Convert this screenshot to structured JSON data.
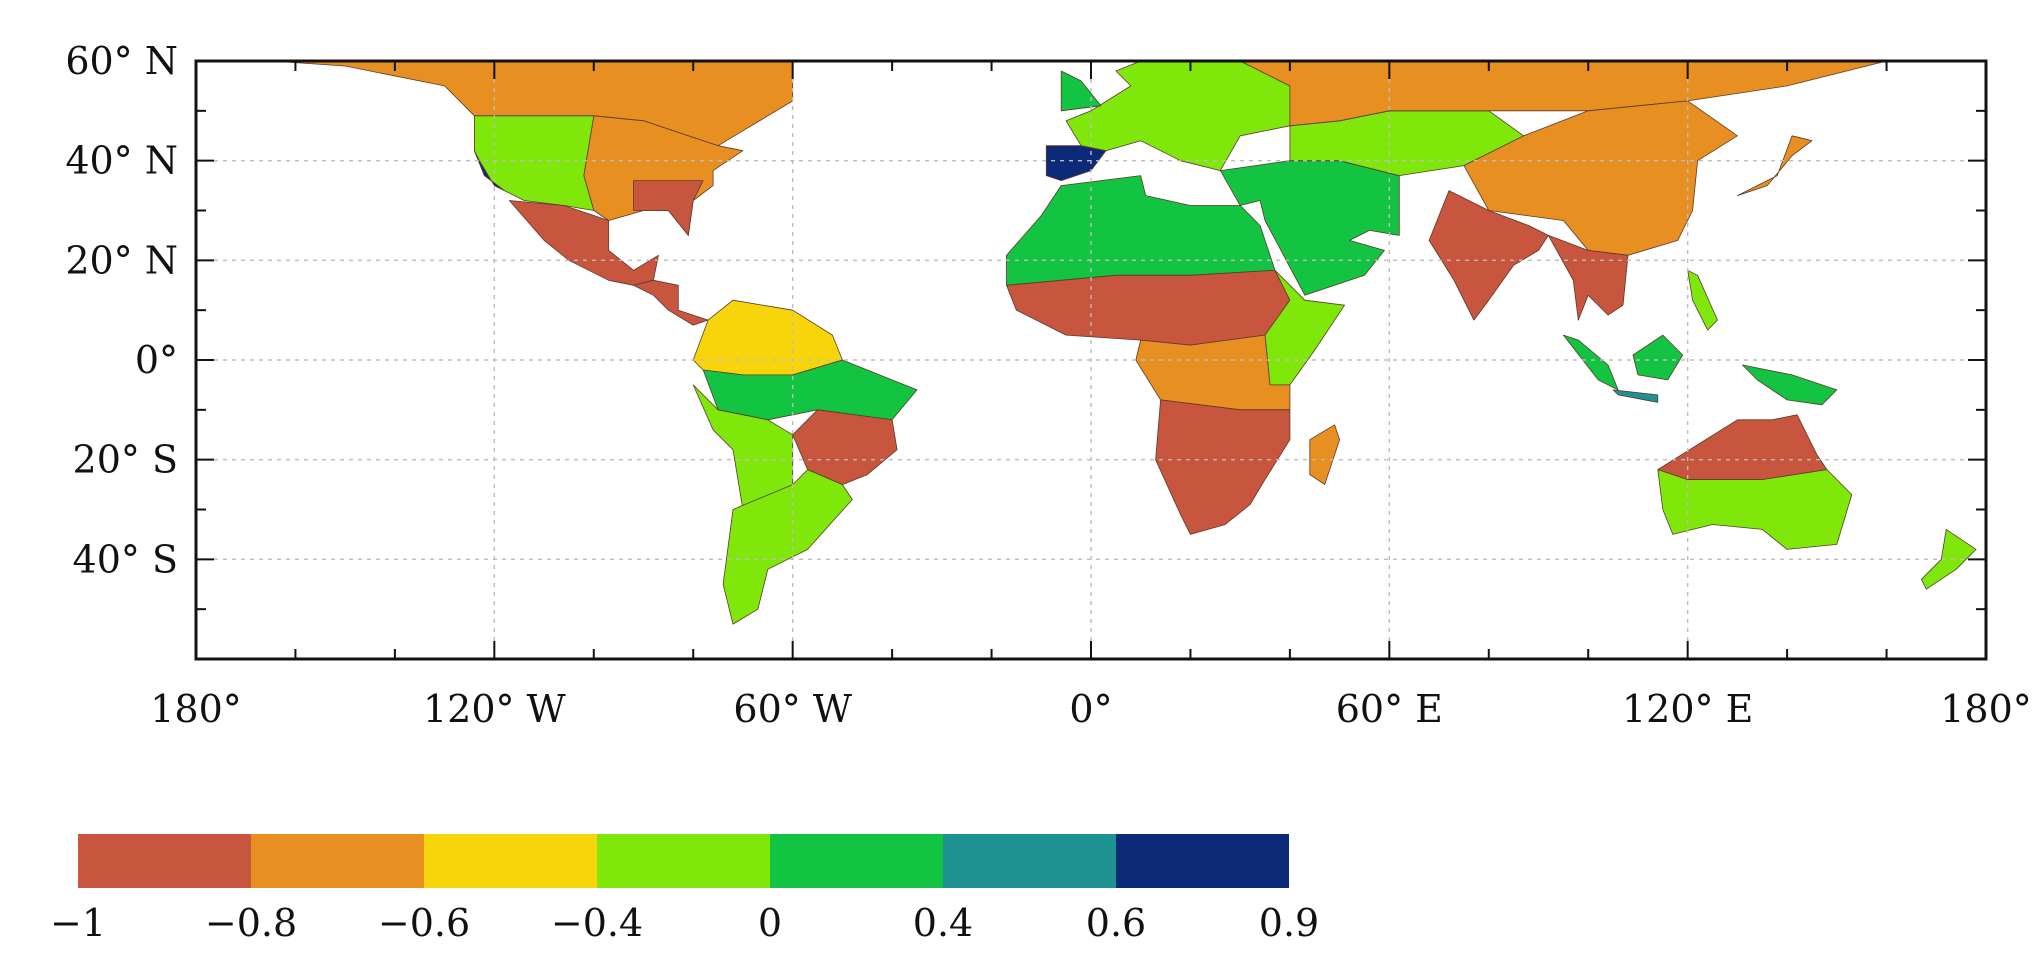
{
  "map": {
    "projection": "equirectangular",
    "lon_range": [
      -180,
      180
    ],
    "lat_range": [
      -60,
      60
    ],
    "grid": true,
    "x_ticks": [
      {
        "lon": -180,
        "label": "180°"
      },
      {
        "lon": -120,
        "label": "120° W"
      },
      {
        "lon": -60,
        "label": "60° W"
      },
      {
        "lon": 0,
        "label": "0°"
      },
      {
        "lon": 60,
        "label": "60° E"
      },
      {
        "lon": 120,
        "label": "120° E"
      },
      {
        "lon": 180,
        "label": "180°"
      }
    ],
    "y_ticks": [
      {
        "lat": 60,
        "label": "60° N"
      },
      {
        "lat": 40,
        "label": "40° N"
      },
      {
        "lat": 20,
        "label": "20° N"
      },
      {
        "lat": 0,
        "label": "0°"
      },
      {
        "lat": -20,
        "label": "20° S"
      },
      {
        "lat": -40,
        "label": "40° S"
      }
    ],
    "minor_x_step": 20,
    "minor_y_step": 10
  },
  "colorbar": {
    "placement": "bottom-left",
    "bins": [
      {
        "from": -1,
        "to": -0.8,
        "color": "#c8553d"
      },
      {
        "from": -0.8,
        "to": -0.6,
        "color": "#e88f22"
      },
      {
        "from": -0.6,
        "to": -0.4,
        "color": "#f7d50a"
      },
      {
        "from": -0.4,
        "to": 0,
        "color": "#7fe80a"
      },
      {
        "from": 0,
        "to": 0.4,
        "color": "#12c441"
      },
      {
        "from": 0.4,
        "to": 0.6,
        "color": "#1e9191"
      },
      {
        "from": 0.6,
        "to": 0.9,
        "color": "#0c2a78"
      }
    ],
    "labels": [
      "−1",
      "−0.8",
      "−0.6",
      "−0.4",
      "0",
      "0.4",
      "0.6",
      "0.9"
    ]
  },
  "regions": [
    {
      "name": "north-america-north",
      "value": -0.7,
      "poly": [
        [
          -165,
          60
        ],
        [
          -60,
          60
        ],
        [
          -60,
          52
        ],
        [
          -70,
          46
        ],
        [
          -75,
          43
        ],
        [
          -90,
          48
        ],
        [
          -100,
          49
        ],
        [
          -124,
          49
        ],
        [
          -130,
          55
        ],
        [
          -150,
          59
        ]
      ]
    },
    {
      "name": "usa-east",
      "value": -0.7,
      "poly": [
        [
          -100,
          49
        ],
        [
          -90,
          48
        ],
        [
          -75,
          43
        ],
        [
          -70,
          42
        ],
        [
          -76,
          38
        ],
        [
          -76,
          35
        ],
        [
          -80,
          32
        ],
        [
          -81,
          25
        ],
        [
          -85,
          30
        ],
        [
          -90,
          30
        ],
        [
          -97,
          28
        ],
        [
          -100,
          30
        ],
        [
          -102,
          37
        ]
      ]
    },
    {
      "name": "usa-west",
      "value": -0.2,
      "poly": [
        [
          -124,
          49
        ],
        [
          -100,
          49
        ],
        [
          -102,
          37
        ],
        [
          -100,
          30
        ],
        [
          -106,
          31
        ],
        [
          -114,
          32
        ],
        [
          -118,
          34
        ],
        [
          -122,
          37
        ],
        [
          -124,
          42
        ]
      ]
    },
    {
      "name": "usa-southeast",
      "value": -0.9,
      "poly": [
        [
          -92,
          36
        ],
        [
          -78,
          36
        ],
        [
          -80,
          32
        ],
        [
          -81,
          25
        ],
        [
          -85,
          30
        ],
        [
          -92,
          30
        ]
      ]
    },
    {
      "name": "california-coast",
      "value": 0.7,
      "poly": [
        [
          -124,
          42
        ],
        [
          -122,
          37
        ],
        [
          -118,
          34
        ],
        [
          -120,
          35
        ],
        [
          -123,
          40
        ]
      ]
    },
    {
      "name": "mexico",
      "value": -0.9,
      "poly": [
        [
          -117,
          32
        ],
        [
          -106,
          31
        ],
        [
          -97,
          28
        ],
        [
          -97,
          22
        ],
        [
          -92,
          18
        ],
        [
          -87,
          21
        ],
        [
          -88,
          16
        ],
        [
          -92,
          15
        ],
        [
          -97,
          16
        ],
        [
          -105,
          20
        ],
        [
          -110,
          24
        ]
      ]
    },
    {
      "name": "central-america",
      "value": -0.9,
      "poly": [
        [
          -92,
          15
        ],
        [
          -88,
          16
        ],
        [
          -83,
          15
        ],
        [
          -83,
          10
        ],
        [
          -77,
          8
        ],
        [
          -80,
          7
        ],
        [
          -85,
          10
        ],
        [
          -88,
          13
        ]
      ]
    },
    {
      "name": "south-america-north",
      "value": -0.5,
      "poly": [
        [
          -77,
          8
        ],
        [
          -72,
          12
        ],
        [
          -60,
          10
        ],
        [
          -52,
          5
        ],
        [
          -50,
          0
        ],
        [
          -60,
          -3
        ],
        [
          -70,
          -3
        ],
        [
          -78,
          -2
        ],
        [
          -80,
          0
        ]
      ]
    },
    {
      "name": "amazon",
      "value": 0.2,
      "poly": [
        [
          -78,
          -2
        ],
        [
          -70,
          -3
        ],
        [
          -60,
          -3
        ],
        [
          -50,
          0
        ],
        [
          -45,
          -2
        ],
        [
          -35,
          -6
        ],
        [
          -40,
          -12
        ],
        [
          -55,
          -10
        ],
        [
          -65,
          -12
        ],
        [
          -75,
          -10
        ]
      ]
    },
    {
      "name": "brazil-central",
      "value": -0.9,
      "poly": [
        [
          -55,
          -10
        ],
        [
          -40,
          -12
        ],
        [
          -39,
          -18
        ],
        [
          -45,
          -23
        ],
        [
          -50,
          -25
        ],
        [
          -57,
          -22
        ],
        [
          -60,
          -15
        ]
      ]
    },
    {
      "name": "andes-west",
      "value": -0.3,
      "poly": [
        [
          -80,
          -5
        ],
        [
          -75,
          -10
        ],
        [
          -65,
          -12
        ],
        [
          -60,
          -15
        ],
        [
          -60,
          -25
        ],
        [
          -70,
          -30
        ],
        [
          -72,
          -18
        ],
        [
          -76,
          -14
        ]
      ]
    },
    {
      "name": "south-america-south",
      "value": -0.3,
      "poly": [
        [
          -60,
          -25
        ],
        [
          -57,
          -22
        ],
        [
          -50,
          -25
        ],
        [
          -48,
          -28
        ],
        [
          -57,
          -38
        ],
        [
          -65,
          -42
        ],
        [
          -67,
          -50
        ],
        [
          -72,
          -53
        ],
        [
          -74,
          -45
        ],
        [
          -72,
          -30
        ]
      ]
    },
    {
      "name": "north-africa",
      "value": 0.1,
      "poly": [
        [
          -17,
          21
        ],
        [
          -10,
          29
        ],
        [
          -6,
          35
        ],
        [
          10,
          37
        ],
        [
          11,
          33
        ],
        [
          20,
          31
        ],
        [
          30,
          31
        ],
        [
          34,
          27
        ],
        [
          37,
          18
        ],
        [
          20,
          17
        ],
        [
          5,
          17
        ],
        [
          -17,
          15
        ]
      ]
    },
    {
      "name": "sahel",
      "value": -0.9,
      "poly": [
        [
          -17,
          15
        ],
        [
          5,
          17
        ],
        [
          20,
          17
        ],
        [
          37,
          18
        ],
        [
          40,
          12
        ],
        [
          35,
          5
        ],
        [
          20,
          3
        ],
        [
          10,
          4
        ],
        [
          -5,
          5
        ],
        [
          -15,
          10
        ]
      ]
    },
    {
      "name": "east-africa",
      "value": -0.3,
      "poly": [
        [
          37,
          18
        ],
        [
          43,
          12
        ],
        [
          51,
          11
        ],
        [
          45,
          2
        ],
        [
          40,
          -5
        ],
        [
          36,
          -5
        ],
        [
          35,
          5
        ],
        [
          40,
          12
        ]
      ]
    },
    {
      "name": "central-africa",
      "value": -0.7,
      "poly": [
        [
          10,
          4
        ],
        [
          20,
          3
        ],
        [
          35,
          5
        ],
        [
          36,
          -5
        ],
        [
          40,
          -5
        ],
        [
          40,
          -10
        ],
        [
          30,
          -10
        ],
        [
          14,
          -8
        ],
        [
          9,
          0
        ]
      ]
    },
    {
      "name": "southern-africa",
      "value": -0.9,
      "poly": [
        [
          14,
          -8
        ],
        [
          30,
          -10
        ],
        [
          40,
          -10
        ],
        [
          40,
          -16
        ],
        [
          35,
          -24
        ],
        [
          32,
          -29
        ],
        [
          27,
          -33
        ],
        [
          20,
          -35
        ],
        [
          18,
          -31
        ],
        [
          13,
          -20
        ]
      ]
    },
    {
      "name": "madagascar",
      "value": -0.7,
      "poly": [
        [
          44,
          -16
        ],
        [
          49,
          -13
        ],
        [
          50,
          -16
        ],
        [
          47,
          -25
        ],
        [
          44,
          -23
        ]
      ]
    },
    {
      "name": "iberia",
      "value": 0.7,
      "poly": [
        [
          -9,
          43
        ],
        [
          -2,
          43
        ],
        [
          3,
          42
        ],
        [
          0,
          38
        ],
        [
          -6,
          36
        ],
        [
          -9,
          37
        ]
      ]
    },
    {
      "name": "europe",
      "value": 0.0,
      "poly": [
        [
          -5,
          48
        ],
        [
          -2,
          43
        ],
        [
          3,
          42
        ],
        [
          10,
          44
        ],
        [
          18,
          40
        ],
        [
          26,
          38
        ],
        [
          30,
          45
        ],
        [
          40,
          47
        ],
        [
          40,
          55
        ],
        [
          30,
          60
        ],
        [
          10,
          60
        ],
        [
          5,
          58
        ],
        [
          8,
          55
        ],
        [
          0,
          50
        ]
      ]
    },
    {
      "name": "britain",
      "value": 0.1,
      "poly": [
        [
          -6,
          50
        ],
        [
          2,
          51
        ],
        [
          -2,
          56
        ],
        [
          -6,
          58
        ]
      ]
    },
    {
      "name": "middle-east",
      "value": 0.2,
      "poly": [
        [
          26,
          38
        ],
        [
          40,
          40
        ],
        [
          50,
          40
        ],
        [
          62,
          37
        ],
        [
          62,
          25
        ],
        [
          56,
          26
        ],
        [
          52,
          24
        ],
        [
          59,
          22
        ],
        [
          55,
          17
        ],
        [
          43,
          13
        ],
        [
          35,
          28
        ],
        [
          34,
          32
        ],
        [
          30,
          31
        ]
      ]
    },
    {
      "name": "central-asia",
      "value": -0.3,
      "poly": [
        [
          40,
          47
        ],
        [
          50,
          48
        ],
        [
          60,
          50
        ],
        [
          80,
          50
        ],
        [
          87,
          45
        ],
        [
          75,
          39
        ],
        [
          62,
          37
        ],
        [
          50,
          40
        ],
        [
          40,
          40
        ]
      ]
    },
    {
      "name": "siberia",
      "value": -0.7,
      "poly": [
        [
          40,
          55
        ],
        [
          40,
          47
        ],
        [
          50,
          48
        ],
        [
          60,
          50
        ],
        [
          80,
          50
        ],
        [
          100,
          50
        ],
        [
          120,
          52
        ],
        [
          140,
          55
        ],
        [
          160,
          60
        ],
        [
          30,
          60
        ]
      ]
    },
    {
      "name": "china",
      "value": -0.7,
      "poly": [
        [
          75,
          39
        ],
        [
          87,
          45
        ],
        [
          100,
          50
        ],
        [
          120,
          52
        ],
        [
          130,
          45
        ],
        [
          122,
          40
        ],
        [
          121,
          30
        ],
        [
          118,
          24
        ],
        [
          108,
          21
        ],
        [
          100,
          22
        ],
        [
          95,
          28
        ],
        [
          80,
          30
        ]
      ]
    },
    {
      "name": "india",
      "value": -0.9,
      "poly": [
        [
          68,
          24
        ],
        [
          72,
          34
        ],
        [
          80,
          30
        ],
        [
          88,
          27
        ],
        [
          92,
          25
        ],
        [
          90,
          22
        ],
        [
          85,
          19
        ],
        [
          80,
          12
        ],
        [
          77,
          8
        ],
        [
          73,
          16
        ]
      ]
    },
    {
      "name": "southeast-asia",
      "value": -0.9,
      "poly": [
        [
          92,
          25
        ],
        [
          100,
          22
        ],
        [
          108,
          21
        ],
        [
          107,
          11
        ],
        [
          104,
          9
        ],
        [
          100,
          13
        ],
        [
          98,
          8
        ],
        [
          97,
          16
        ]
      ]
    },
    {
      "name": "japan",
      "value": -0.7,
      "poly": [
        [
          130,
          33
        ],
        [
          136,
          35
        ],
        [
          141,
          41
        ],
        [
          145,
          44
        ],
        [
          141,
          45
        ],
        [
          138,
          37
        ]
      ]
    },
    {
      "name": "sumatra",
      "value": 0.2,
      "poly": [
        [
          95,
          5
        ],
        [
          98,
          4
        ],
        [
          104,
          -1
        ],
        [
          106,
          -6
        ],
        [
          102,
          -4
        ]
      ]
    },
    {
      "name": "borneo",
      "value": 0.2,
      "poly": [
        [
          109,
          1
        ],
        [
          115,
          5
        ],
        [
          119,
          1
        ],
        [
          116,
          -4
        ],
        [
          110,
          -3
        ]
      ]
    },
    {
      "name": "java",
      "value": 0.5,
      "poly": [
        [
          105,
          -6
        ],
        [
          114,
          -7
        ],
        [
          114,
          -8.5
        ],
        [
          106,
          -7
        ]
      ]
    },
    {
      "name": "new-guinea",
      "value": 0.2,
      "poly": [
        [
          131,
          -1
        ],
        [
          141,
          -3
        ],
        [
          150,
          -6
        ],
        [
          147,
          -9
        ],
        [
          140,
          -8
        ],
        [
          134,
          -4
        ]
      ]
    },
    {
      "name": "philippines",
      "value": -0.3,
      "poly": [
        [
          120,
          18
        ],
        [
          122,
          17
        ],
        [
          126,
          8
        ],
        [
          124,
          6
        ],
        [
          121,
          12
        ]
      ]
    },
    {
      "name": "australia-north",
      "value": -0.9,
      "poly": [
        [
          114,
          -22
        ],
        [
          122,
          -17
        ],
        [
          130,
          -12
        ],
        [
          137,
          -12
        ],
        [
          142,
          -11
        ],
        [
          146,
          -19
        ],
        [
          148,
          -22
        ],
        [
          135,
          -24
        ],
        [
          120,
          -24
        ]
      ]
    },
    {
      "name": "australia-south",
      "value": -0.3,
      "poly": [
        [
          114,
          -22
        ],
        [
          120,
          -24
        ],
        [
          135,
          -24
        ],
        [
          148,
          -22
        ],
        [
          153,
          -27
        ],
        [
          150,
          -37
        ],
        [
          140,
          -38
        ],
        [
          135,
          -34
        ],
        [
          125,
          -33
        ],
        [
          117,
          -35
        ],
        [
          115,
          -30
        ]
      ]
    },
    {
      "name": "new-zealand",
      "value": 0.0,
      "poly": [
        [
          172,
          -34
        ],
        [
          178,
          -38
        ],
        [
          174,
          -42
        ],
        [
          168,
          -46
        ],
        [
          167,
          -44
        ],
        [
          171,
          -40
        ]
      ]
    }
  ]
}
